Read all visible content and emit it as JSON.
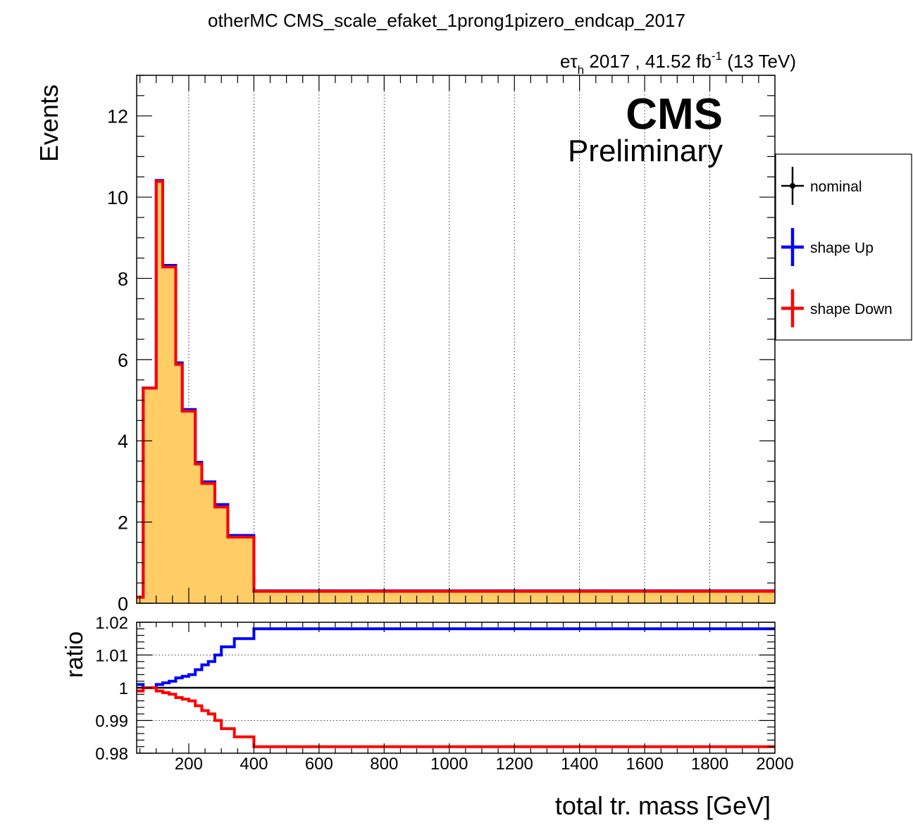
{
  "chart_data": [
    {
      "type": "line",
      "panel": "main",
      "title": "otherMC CMS_scale_efaket_1prong1pizero_endcap_2017",
      "lumi_prefix": "eτ",
      "lumi_sub": "h",
      "lumi_mid": " 2017 , 41.52 fb",
      "lumi_sup": "-1",
      "lumi_suffix": " (13 TeV)",
      "cms_label": "CMS",
      "cms_sublabel": "Preliminary",
      "ylabel": "Events",
      "xlim": [
        40,
        2000
      ],
      "ylim": [
        0,
        13
      ],
      "yticks": [
        0,
        2,
        4,
        6,
        8,
        10,
        12
      ],
      "xgrid": true,
      "ygrid": false,
      "bin_edges": [
        40,
        60,
        80,
        100,
        120,
        140,
        160,
        180,
        200,
        220,
        240,
        260,
        280,
        300,
        320,
        340,
        360,
        380,
        400,
        2000
      ],
      "series": [
        {
          "name": "nominal",
          "color": "#000000",
          "fill": "#ffcc66",
          "values": [
            0.15,
            5.3,
            5.3,
            10.4,
            8.3,
            8.3,
            5.9,
            4.75,
            4.75,
            3.45,
            2.97,
            2.97,
            2.4,
            2.4,
            1.65,
            1.65,
            1.65,
            1.65,
            0.3
          ]
        },
        {
          "name": "shape Up",
          "color": "#0000ff",
          "values": [
            0.15,
            5.3,
            5.3,
            10.41,
            8.32,
            8.32,
            5.92,
            4.77,
            4.77,
            3.47,
            2.99,
            2.99,
            2.43,
            2.43,
            1.67,
            1.67,
            1.67,
            1.67,
            0.305
          ]
        },
        {
          "name": "shape Down",
          "color": "#ff0000",
          "values": [
            0.15,
            5.3,
            5.3,
            10.39,
            8.28,
            8.28,
            5.88,
            4.73,
            4.73,
            3.43,
            2.95,
            2.95,
            2.37,
            2.37,
            1.63,
            1.63,
            1.63,
            1.63,
            0.295
          ]
        }
      ],
      "legend": {
        "placement": "right",
        "entries": [
          {
            "label": "nominal",
            "color": "#000000",
            "marker": true
          },
          {
            "label": "shape Up",
            "color": "#0000ff",
            "marker": false
          },
          {
            "label": "shape Down",
            "color": "#ff0000",
            "marker": false
          }
        ]
      }
    },
    {
      "type": "line",
      "panel": "ratio",
      "ylabel": "ratio",
      "xlabel": "total tr. mass [GeV]",
      "xlim": [
        40,
        2000
      ],
      "ylim": [
        0.98,
        1.02
      ],
      "yticks": [
        0.98,
        0.99,
        1,
        1.01,
        1.02
      ],
      "ytick_labels": [
        "0.98",
        "0.99",
        "1",
        "1.01",
        "1.02"
      ],
      "xticks": [
        200,
        400,
        600,
        800,
        1000,
        1200,
        1400,
        1600,
        1800,
        2000
      ],
      "xgrid": false,
      "ygrid": true,
      "reference": 1,
      "bin_edges": [
        40,
        60,
        80,
        100,
        120,
        140,
        160,
        180,
        200,
        220,
        240,
        260,
        280,
        300,
        320,
        340,
        360,
        380,
        400,
        2000
      ],
      "series": [
        {
          "name": "shape Up",
          "color": "#0000ff",
          "values": [
            1.001,
            1.0,
            1.0,
            1.001,
            1.0015,
            1.002,
            1.003,
            1.0035,
            1.004,
            1.0055,
            1.007,
            1.008,
            1.01,
            1.0125,
            1.0125,
            1.015,
            1.015,
            1.015,
            1.018
          ]
        },
        {
          "name": "shape Down",
          "color": "#ff0000",
          "values": [
            0.999,
            1.0,
            1.0,
            0.999,
            0.9985,
            0.998,
            0.997,
            0.9965,
            0.996,
            0.9945,
            0.993,
            0.992,
            0.99,
            0.9875,
            0.9875,
            0.985,
            0.985,
            0.985,
            0.982
          ]
        }
      ]
    }
  ]
}
